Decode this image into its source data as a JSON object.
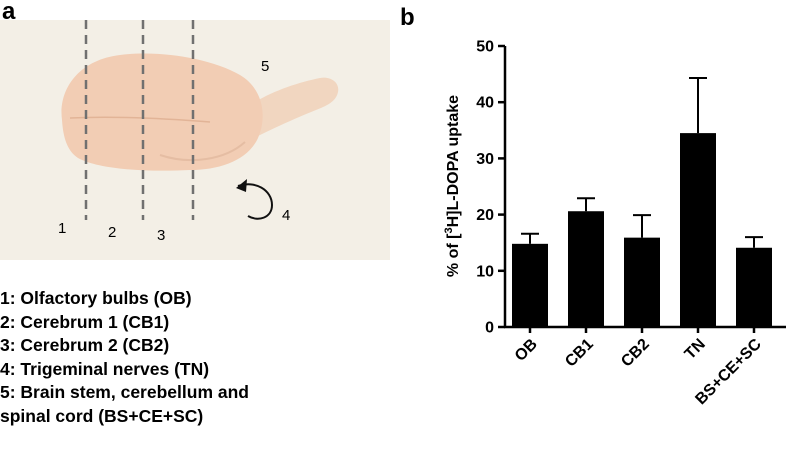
{
  "panels": {
    "a": "a",
    "b": "b"
  },
  "photo": {
    "region_numbers": [
      "1",
      "2",
      "3",
      "4",
      "5"
    ],
    "tissue_color": "#f2cdb4",
    "background_color": "#f3efe6"
  },
  "legend": [
    "1: Olfactory bulbs (OB)",
    "2: Cerebrum 1 (CB1)",
    "3: Cerebrum 2 (CB2)",
    "4: Trigeminal nerves (TN)",
    "5: Brain stem, cerebellum and",
    "spinal cord (BS+CE+SC)"
  ],
  "chart_data": {
    "type": "bar",
    "categories": [
      "OB",
      "CB1",
      "CB2",
      "TN",
      "BS+CE+SC"
    ],
    "values": [
      14.8,
      20.6,
      15.9,
      34.5,
      14.1
    ],
    "errors": [
      1.8,
      2.3,
      4.0,
      9.8,
      1.9
    ],
    "ylabel_pre": "% of [",
    "ylabel_sup": "3",
    "ylabel_post": "H]L-DOPA uptake",
    "yticks": [
      "0",
      "10",
      "20",
      "30",
      "40",
      "50"
    ],
    "ylim": [
      0,
      50
    ],
    "bar_color": "#000000",
    "grid": false
  }
}
